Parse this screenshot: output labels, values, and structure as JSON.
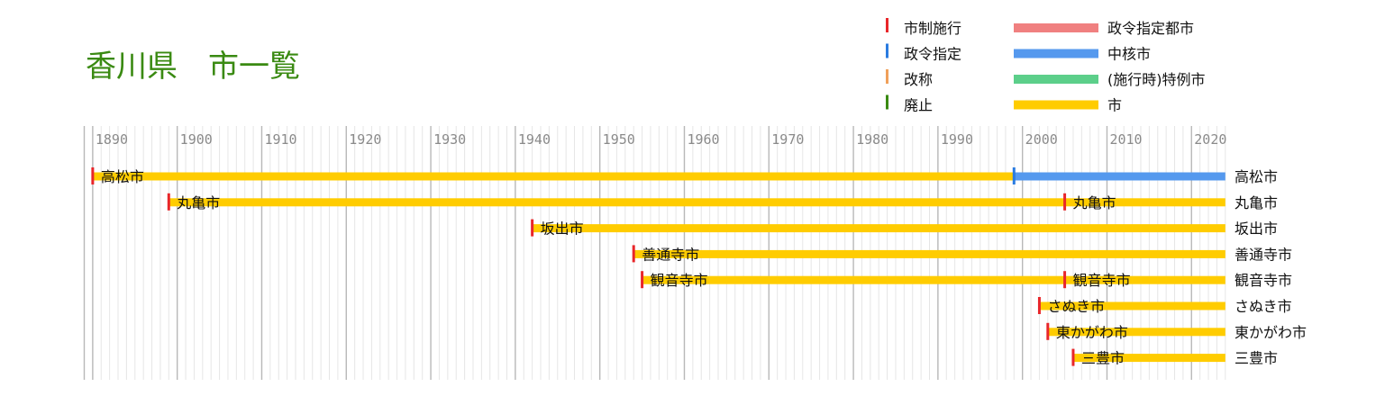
{
  "title": "香川県　市一覧",
  "legend": {
    "events": [
      {
        "label": "市制施行",
        "color": "#e8262a"
      },
      {
        "label": "政令指定",
        "color": "#2a7be0"
      },
      {
        "label": "改称",
        "color": "#f0a05a"
      },
      {
        "label": "廃止",
        "color": "#3a8a12"
      }
    ],
    "types": [
      {
        "label": "政令指定都市",
        "color": "#f08080"
      },
      {
        "label": "中核市",
        "color": "#5599ee"
      },
      {
        "label": "(施行時)特例市",
        "color": "#5ccf8a"
      },
      {
        "label": "市",
        "color": "#ffcc00"
      }
    ]
  },
  "chart_data": {
    "type": "timeline",
    "xlim": [
      1889,
      2024
    ],
    "ticks": [
      1890,
      1900,
      1910,
      1920,
      1930,
      1940,
      1950,
      1960,
      1970,
      1980,
      1990,
      2000,
      2010,
      2020
    ],
    "cities": [
      {
        "end_label": "高松市",
        "segments": [
          {
            "start": 1890,
            "end": 1999,
            "type": "市"
          },
          {
            "start": 1999,
            "end": 2024,
            "type": "中核市"
          }
        ],
        "events": [
          {
            "year": 1890,
            "kind": "市制施行",
            "label": "高松市"
          },
          {
            "year": 1999,
            "kind": "政令指定",
            "label": ""
          }
        ]
      },
      {
        "end_label": "丸亀市",
        "segments": [
          {
            "start": 1899,
            "end": 2024,
            "type": "市"
          }
        ],
        "events": [
          {
            "year": 1899,
            "kind": "市制施行",
            "label": "丸亀市"
          },
          {
            "year": 2005,
            "kind": "市制施行",
            "label": "丸亀市"
          }
        ]
      },
      {
        "end_label": "坂出市",
        "segments": [
          {
            "start": 1942,
            "end": 2024,
            "type": "市"
          }
        ],
        "events": [
          {
            "year": 1942,
            "kind": "市制施行",
            "label": "坂出市"
          }
        ]
      },
      {
        "end_label": "善通寺市",
        "segments": [
          {
            "start": 1954,
            "end": 2024,
            "type": "市"
          }
        ],
        "events": [
          {
            "year": 1954,
            "kind": "市制施行",
            "label": "善通寺市"
          }
        ]
      },
      {
        "end_label": "観音寺市",
        "segments": [
          {
            "start": 1955,
            "end": 2024,
            "type": "市"
          }
        ],
        "events": [
          {
            "year": 1955,
            "kind": "市制施行",
            "label": "観音寺市"
          },
          {
            "year": 2005,
            "kind": "市制施行",
            "label": "観音寺市"
          }
        ]
      },
      {
        "end_label": "さぬき市",
        "segments": [
          {
            "start": 2002,
            "end": 2024,
            "type": "市"
          }
        ],
        "events": [
          {
            "year": 2002,
            "kind": "市制施行",
            "label": "さぬき市"
          }
        ]
      },
      {
        "end_label": "東かがわ市",
        "segments": [
          {
            "start": 2003,
            "end": 2024,
            "type": "市"
          }
        ],
        "events": [
          {
            "year": 2003,
            "kind": "市制施行",
            "label": "東かがわ市"
          }
        ]
      },
      {
        "end_label": "三豊市",
        "segments": [
          {
            "start": 2006,
            "end": 2024,
            "type": "市"
          }
        ],
        "events": [
          {
            "year": 2006,
            "kind": "市制施行",
            "label": "三豊市"
          }
        ]
      }
    ]
  }
}
